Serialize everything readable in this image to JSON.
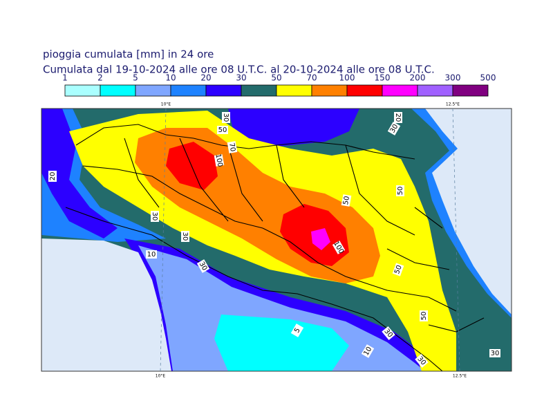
{
  "header": {
    "title": "pioggia cumulata [mm] in 24 ore",
    "subtitle": "Cumulata dal 19-10-2024 alle ore 08 U.T.C. al 20-10-2024 alle ore 08 U.T.C."
  },
  "legend": {
    "levels": [
      1,
      2,
      5,
      10,
      20,
      30,
      50,
      70,
      100,
      150,
      200,
      300,
      500
    ],
    "colors": [
      "#aaffff",
      "#00ffff",
      "#7fa6ff",
      "#1e82ff",
      "#2c00ff",
      "#236b6b",
      "#ffff00",
      "#ff8000",
      "#ff0000",
      "#ff00ff",
      "#a060ff",
      "#800080"
    ]
  },
  "lon_ticks": [
    {
      "value": 10,
      "label": "10°E"
    },
    {
      "value": 12.5,
      "label": "12.5°E"
    }
  ],
  "contour_labels": [
    30,
    50,
    70,
    100,
    20,
    30,
    20,
    30,
    30,
    10,
    30,
    50,
    50,
    100,
    50,
    50,
    5,
    30,
    10,
    30,
    30
  ]
}
